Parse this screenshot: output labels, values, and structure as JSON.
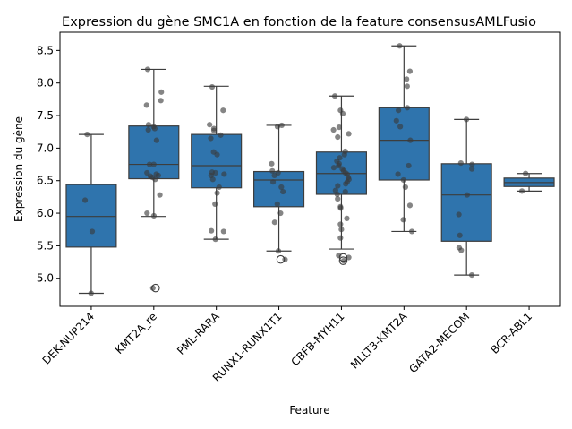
{
  "chart_data": {
    "type": "box",
    "title": "Expression du gène SMC1A en fonction de la feature consensusAMLFusio",
    "xlabel": "Feature",
    "ylabel": "Expression du gène",
    "ylim": [
      4.57,
      8.78
    ],
    "yticks": [
      5.0,
      5.5,
      6.0,
      6.5,
      7.0,
      7.5,
      8.0,
      8.5
    ],
    "ytick_labels": [
      "5.0",
      "5.5",
      "6.0",
      "6.5",
      "7.0",
      "7.5",
      "8.0",
      "8.5"
    ],
    "grid": false,
    "colors": {
      "box": "#2f74ad",
      "edge": "#3d3d3d",
      "point": "#3a3a3a"
    },
    "categories": [
      "DEK-NUP214",
      "KMT2A_re",
      "PML-RARA",
      "RUNX1-RUNX1T1",
      "CBFB-MYH11",
      "MLLT3-KMT2A",
      "GATA2-MECOM",
      "BCR-ABL1"
    ],
    "boxes": [
      {
        "q1": 5.48,
        "median": 5.95,
        "q3": 6.44,
        "whislo": 4.77,
        "whishi": 7.21,
        "fliers": []
      },
      {
        "q1": 6.53,
        "median": 6.75,
        "q3": 7.34,
        "whislo": 5.95,
        "whishi": 8.21,
        "fliers": [
          4.85
        ]
      },
      {
        "q1": 6.39,
        "median": 6.73,
        "q3": 7.21,
        "whislo": 5.6,
        "whishi": 7.95,
        "fliers": []
      },
      {
        "q1": 6.1,
        "median": 6.51,
        "q3": 6.64,
        "whislo": 5.42,
        "whishi": 7.35,
        "fliers": [
          5.29
        ]
      },
      {
        "q1": 6.29,
        "median": 6.61,
        "q3": 6.94,
        "whislo": 5.45,
        "whishi": 7.8,
        "fliers": [
          5.32,
          5.27
        ]
      },
      {
        "q1": 6.51,
        "median": 7.12,
        "q3": 7.62,
        "whislo": 5.72,
        "whishi": 8.57,
        "fliers": []
      },
      {
        "q1": 5.57,
        "median": 6.28,
        "q3": 6.76,
        "whislo": 5.05,
        "whishi": 7.44,
        "fliers": []
      },
      {
        "q1": 6.41,
        "median": 6.47,
        "q3": 6.54,
        "whislo": 6.34,
        "whishi": 6.61,
        "fliers": []
      }
    ],
    "points": [
      [
        4.77,
        5.72,
        6.2,
        7.21
      ],
      [
        4.85,
        5.96,
        6.0,
        6.28,
        6.52,
        6.55,
        6.57,
        6.58,
        6.6,
        6.62,
        6.75,
        6.75,
        7.12,
        7.28,
        7.3,
        7.33,
        7.36,
        7.66,
        7.73,
        7.86,
        8.21
      ],
      [
        5.6,
        5.72,
        5.73,
        6.14,
        6.31,
        6.4,
        6.52,
        6.58,
        6.6,
        6.62,
        6.63,
        6.9,
        6.94,
        7.15,
        7.2,
        7.27,
        7.3,
        7.36,
        7.58,
        7.94
      ],
      [
        5.29,
        5.42,
        5.86,
        6.0,
        6.14,
        6.33,
        6.4,
        6.48,
        6.58,
        6.62,
        6.65,
        6.76,
        7.33,
        7.35
      ],
      [
        5.27,
        5.32,
        5.35,
        5.62,
        5.75,
        5.83,
        5.92,
        6.08,
        6.1,
        6.22,
        6.29,
        6.33,
        6.35,
        6.42,
        6.45,
        6.48,
        6.52,
        6.55,
        6.6,
        6.62,
        6.65,
        6.68,
        6.7,
        6.73,
        6.76,
        6.8,
        6.85,
        6.9,
        6.95,
        7.17,
        7.22,
        7.28,
        7.32,
        7.53,
        7.58,
        7.8
      ],
      [
        5.72,
        5.9,
        6.12,
        6.4,
        6.51,
        6.6,
        6.73,
        7.12,
        7.33,
        7.42,
        7.58,
        7.62,
        7.95,
        8.06,
        8.18,
        8.57
      ],
      [
        5.05,
        5.43,
        5.47,
        5.66,
        5.98,
        6.28,
        6.68,
        6.75,
        6.77,
        7.44
      ],
      [
        6.34,
        6.61
      ]
    ]
  }
}
